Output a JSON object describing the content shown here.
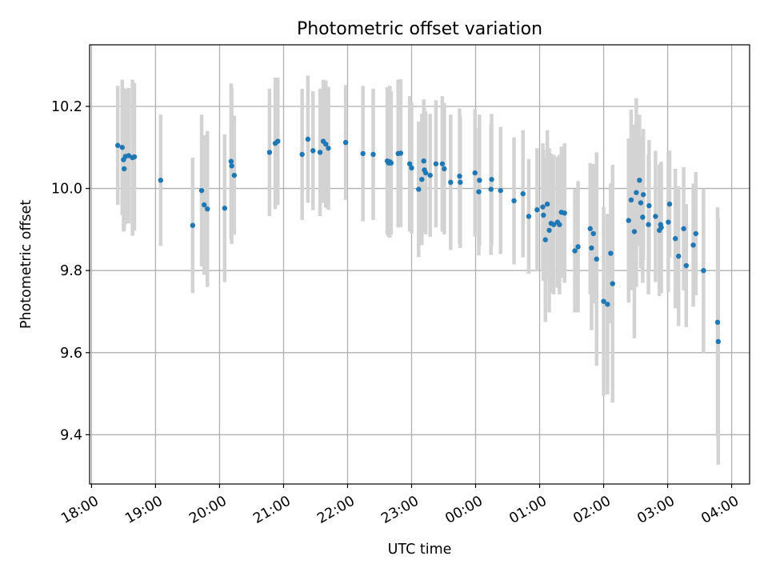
{
  "chart_data": {
    "type": "scatter",
    "title": "Photometric offset variation",
    "xlabel": "UTC time",
    "ylabel": "Photometric offset",
    "x_unit": "UTC hours (continuing past 24:00)",
    "xlim": [
      17.97,
      28.28
    ],
    "ylim": [
      9.28,
      10.35
    ],
    "x_ticks": [
      {
        "value": 18,
        "label": "18:00"
      },
      {
        "value": 19,
        "label": "19:00"
      },
      {
        "value": 20,
        "label": "20:00"
      },
      {
        "value": 21,
        "label": "21:00"
      },
      {
        "value": 22,
        "label": "22:00"
      },
      {
        "value": 23,
        "label": "23:00"
      },
      {
        "value": 24,
        "label": "00:00"
      },
      {
        "value": 25,
        "label": "01:00"
      },
      {
        "value": 26,
        "label": "02:00"
      },
      {
        "value": 27,
        "label": "03:00"
      },
      {
        "value": 28,
        "label": "04:00"
      }
    ],
    "y_ticks": [
      {
        "value": 9.4,
        "label": "9.4"
      },
      {
        "value": 9.6,
        "label": "9.6"
      },
      {
        "value": 9.8,
        "label": "9.8"
      },
      {
        "value": 10.0,
        "label": "10.0"
      },
      {
        "value": 10.2,
        "label": "10.2"
      }
    ],
    "grid": true,
    "colors": {
      "points": "#1f77b4",
      "error_bars": "#d3d3d3",
      "grid": "#b0b0b0"
    },
    "series": [
      {
        "points": [
          [
            18.41,
            10.105,
            0.145
          ],
          [
            18.48,
            10.1,
            0.165
          ],
          [
            18.5,
            10.07,
            0.175
          ],
          [
            18.51,
            10.048,
            0.15
          ],
          [
            18.53,
            10.078,
            0.165
          ],
          [
            18.58,
            10.08,
            0.165
          ],
          [
            18.64,
            10.075,
            0.19
          ],
          [
            18.67,
            10.077,
            0.18
          ],
          [
            19.08,
            10.02,
            0.16
          ],
          [
            19.58,
            9.91,
            0.165
          ],
          [
            19.72,
            9.995,
            0.185
          ],
          [
            19.76,
            9.96,
            0.17
          ],
          [
            19.81,
            9.95,
            0.19
          ],
          [
            20.08,
            9.952,
            0.18
          ],
          [
            20.18,
            10.066,
            0.19
          ],
          [
            20.19,
            10.055,
            0.19
          ],
          [
            20.23,
            10.032,
            0.145
          ],
          [
            20.78,
            10.088,
            0.155
          ],
          [
            20.87,
            10.11,
            0.16
          ],
          [
            20.91,
            10.115,
            0.155
          ],
          [
            21.29,
            10.083,
            0.16
          ],
          [
            21.38,
            10.12,
            0.155
          ],
          [
            21.46,
            10.092,
            0.145
          ],
          [
            21.57,
            10.088,
            0.155
          ],
          [
            21.62,
            10.115,
            0.15
          ],
          [
            21.66,
            10.108,
            0.155
          ],
          [
            21.7,
            10.098,
            0.15
          ],
          [
            21.97,
            10.112,
            0.14
          ],
          [
            22.24,
            10.085,
            0.165
          ],
          [
            22.4,
            10.083,
            0.16
          ],
          [
            22.62,
            10.067,
            0.18
          ],
          [
            22.64,
            10.062,
            0.18
          ],
          [
            22.66,
            10.065,
            0.185
          ],
          [
            22.68,
            10.062,
            0.175
          ],
          [
            22.79,
            10.085,
            0.18
          ],
          [
            22.83,
            10.086,
            0.18
          ],
          [
            22.97,
            10.06,
            0.165
          ],
          [
            23.0,
            10.05,
            0.16
          ],
          [
            23.11,
            9.998,
            0.165
          ],
          [
            23.16,
            10.022,
            0.16
          ],
          [
            23.19,
            10.067,
            0.15
          ],
          [
            23.2,
            10.045,
            0.15
          ],
          [
            23.22,
            10.038,
            0.15
          ],
          [
            23.29,
            10.032,
            0.15
          ],
          [
            23.38,
            10.06,
            0.155
          ],
          [
            23.48,
            10.06,
            0.165
          ],
          [
            23.51,
            10.048,
            0.16
          ],
          [
            23.61,
            10.015,
            0.165
          ],
          [
            23.75,
            10.03,
            0.165
          ],
          [
            23.76,
            10.015,
            0.16
          ],
          [
            23.99,
            10.038,
            0.155
          ],
          [
            24.05,
            9.992,
            0.155
          ],
          [
            24.06,
            10.02,
            0.16
          ],
          [
            24.24,
            9.998,
            0.16
          ],
          [
            24.25,
            10.022,
            0.16
          ],
          [
            24.39,
            9.995,
            0.155
          ],
          [
            24.6,
            9.97,
            0.155
          ],
          [
            24.74,
            9.987,
            0.155
          ],
          [
            24.83,
            9.932,
            0.14
          ],
          [
            24.96,
            9.948,
            0.15
          ],
          [
            25.05,
            9.955,
            0.155
          ],
          [
            25.06,
            9.935,
            0.16
          ],
          [
            25.09,
            9.875,
            0.2
          ],
          [
            25.12,
            9.962,
            0.18
          ],
          [
            25.15,
            9.898,
            0.2
          ],
          [
            25.18,
            9.915,
            0.17
          ],
          [
            25.22,
            9.912,
            0.17
          ],
          [
            25.28,
            9.918,
            0.16
          ],
          [
            25.31,
            9.912,
            0.17
          ],
          [
            25.34,
            9.942,
            0.16
          ],
          [
            25.39,
            9.94,
            0.17
          ],
          [
            25.55,
            9.848,
            0.15
          ],
          [
            25.6,
            9.858,
            0.16
          ],
          [
            25.79,
            9.902,
            0.16
          ],
          [
            25.81,
            9.855,
            0.2
          ],
          [
            25.84,
            9.89,
            0.17
          ],
          [
            25.89,
            9.828,
            0.26
          ],
          [
            26.0,
            9.725,
            0.23
          ],
          [
            26.06,
            9.718,
            0.22
          ],
          [
            26.11,
            9.842,
            0.17
          ],
          [
            26.14,
            9.768,
            0.29
          ],
          [
            26.39,
            9.922,
            0.2
          ],
          [
            26.43,
            9.972,
            0.22
          ],
          [
            26.48,
            9.895,
            0.26
          ],
          [
            26.51,
            9.99,
            0.23
          ],
          [
            26.56,
            10.02,
            0.16
          ],
          [
            26.58,
            9.965,
            0.16
          ],
          [
            26.61,
            9.93,
            0.16
          ],
          [
            26.62,
            9.985,
            0.16
          ],
          [
            26.7,
            9.912,
            0.17
          ],
          [
            26.71,
            9.958,
            0.16
          ],
          [
            26.81,
            9.932,
            0.16
          ],
          [
            26.87,
            9.898,
            0.16
          ],
          [
            26.89,
            9.912,
            0.15
          ],
          [
            26.9,
            9.905,
            0.16
          ],
          [
            27.01,
            9.918,
            0.17
          ],
          [
            27.03,
            9.962,
            0.13
          ],
          [
            27.12,
            9.878,
            0.17
          ],
          [
            27.17,
            9.835,
            0.17
          ],
          [
            27.25,
            9.902,
            0.15
          ],
          [
            27.29,
            9.812,
            0.15
          ],
          [
            27.4,
            9.862,
            0.15
          ],
          [
            27.44,
            9.89,
            0.15
          ],
          [
            27.56,
            9.8,
            0.2
          ],
          [
            27.78,
            9.674,
            0.28
          ],
          [
            27.79,
            9.627,
            0.3
          ]
        ]
      }
    ]
  }
}
